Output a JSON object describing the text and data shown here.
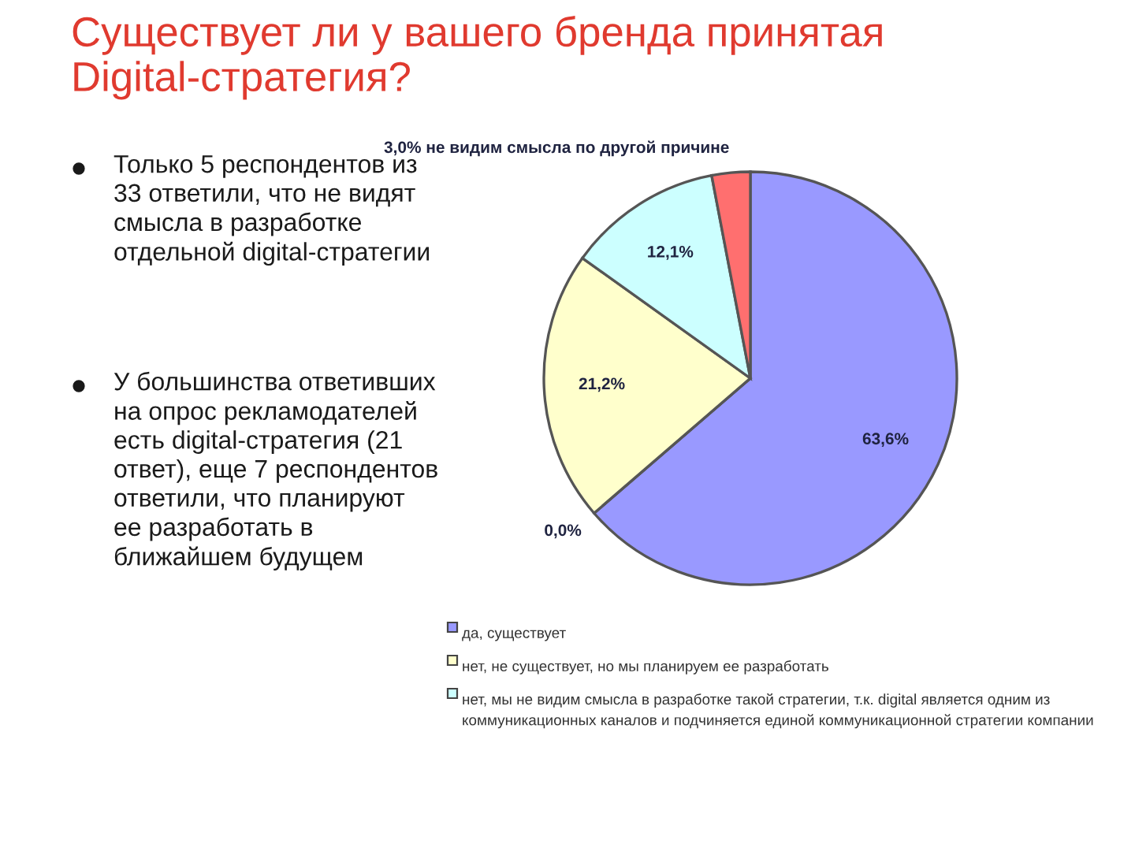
{
  "chart_data": {
    "type": "pie",
    "title": "Существует ли у вашего бренда принятая Digital-стратегия?",
    "categories": [
      "да, существует",
      null,
      "нет, не существует, но мы планируем ее разработать",
      "нет, мы не видим смысла в разработке такой стратегии, т.к. digital является одним из коммуникационных каналов и подчиняется единой коммуникационной стратегии компании",
      null
    ],
    "values": [
      63.6,
      0.0,
      21.2,
      12.1,
      3.0
    ],
    "colors": [
      "#9999ff",
      "#993366",
      "#ffffcc",
      "#ccffff",
      "#ff6f6f"
    ],
    "value_labels": [
      "63,6%",
      "0,0%",
      "21,2%",
      "12,1%",
      "3,0% не видим смысла по другой причине"
    ],
    "legend": "bottom",
    "annotations": [
      "Только 5 респондентов из 33 ответили, что не видят смысла в разработке отдельной digital-стратегии",
      "У большинства ответивших на опрос рекламодателей есть digital-стратегия (21 ответ), еще 7 респондентов ответили, что планируют ее разработать в ближайшем будущем"
    ]
  }
}
